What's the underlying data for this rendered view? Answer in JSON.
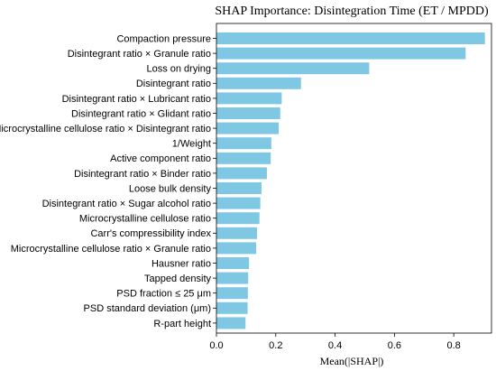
{
  "chart_data": {
    "type": "bar",
    "orientation": "horizontal",
    "title": "SHAP Importance: Disintegration Time (ET / MPDD)",
    "xlabel": "Mean(|SHAP|)",
    "ylabel": "",
    "xlim": [
      0.0,
      0.92
    ],
    "xticks": [
      0.0,
      0.2,
      0.4,
      0.6,
      0.8
    ],
    "xtick_labels": [
      "0.0",
      "0.2",
      "0.4",
      "0.6",
      "0.8"
    ],
    "grid": false,
    "bar_color": "#7ec8e3",
    "categories": [
      "Compaction pressure",
      "Disintegrant ratio × Granule ratio",
      "Loss on drying",
      "Disintegrant ratio",
      "Disintegrant ratio × Lubricant ratio",
      "Disintegrant ratio × Glidant ratio",
      "Microcrystalline cellulose ratio × Disintegrant ratio",
      "1/Weight",
      "Active component ratio",
      "Disintegrant ratio × Binder ratio",
      "Loose bulk density",
      "Disintegrant ratio × Sugar alcohol ratio",
      "Microcrystalline cellulose ratio",
      "Carr's compressibility index",
      "Microcrystalline cellulose ratio × Granule ratio",
      "Hausner ratio",
      "Tapped density",
      "PSD fraction ≤ 25 μm",
      "PSD standard deviation (μm)",
      "R-part height"
    ],
    "values": [
      0.905,
      0.84,
      0.515,
      0.285,
      0.22,
      0.215,
      0.21,
      0.185,
      0.183,
      0.17,
      0.152,
      0.148,
      0.145,
      0.137,
      0.134,
      0.11,
      0.107,
      0.106,
      0.105,
      0.098
    ]
  }
}
